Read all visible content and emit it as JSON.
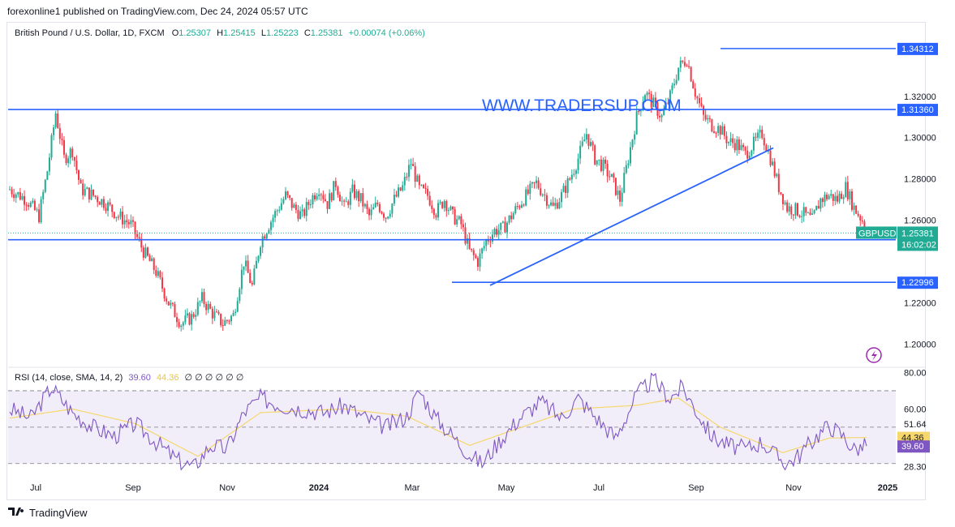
{
  "header": {
    "publisher_text": "forexonline1 published on TradingView.com, Dec 24, 2024 05:57 UTC"
  },
  "legend": {
    "symbol_desc": "British Pound / U.S. Dollar, 1D, FXCM",
    "open_label": "O",
    "open": "1.25307",
    "high_label": "H",
    "high": "1.25415",
    "low_label": "L",
    "low": "1.25223",
    "close_label": "C",
    "close": "1.25381",
    "change": "+0.00074 (+0.06%)"
  },
  "watermark": "WWW.TRADERSUP.COM",
  "rsi_legend": {
    "label": "RSI (14, close, SMA, 14, 2)",
    "rsi_value": "39.60",
    "sma_value": "44.36",
    "eye_icons": "∅ ∅ ∅ ∅ ∅ ∅"
  },
  "footer": {
    "brand": "TradingView"
  },
  "colors": {
    "up": "#22ab94",
    "down": "#f23645",
    "line": "#2962ff",
    "rsi": "#7e57c2",
    "rsi_sma": "#f5d76e",
    "rsi_band": "#ede7f6",
    "watermark": "#2962ff"
  },
  "chart_data": [
    {
      "type": "candlestick",
      "symbol": "GBPUSD",
      "x_labels": [
        "Jul",
        "Sep",
        "Nov",
        "2024",
        "Mar",
        "May",
        "Jul",
        "Sep",
        "Nov",
        "2025"
      ],
      "y_ticks": [
        "1.20000",
        "1.22000",
        "1.26000",
        "1.28000",
        "1.30000",
        "1.32000"
      ],
      "ylim": [
        1.19,
        1.347
      ],
      "approx_closes": [
        [
          0,
          1.275
        ],
        [
          8,
          1.27
        ],
        [
          14,
          1.262
        ],
        [
          18,
          1.284
        ],
        [
          22,
          1.312
        ],
        [
          26,
          1.29
        ],
        [
          30,
          1.294
        ],
        [
          34,
          1.275
        ],
        [
          40,
          1.272
        ],
        [
          46,
          1.268
        ],
        [
          52,
          1.262
        ],
        [
          58,
          1.258
        ],
        [
          64,
          1.245
        ],
        [
          70,
          1.235
        ],
        [
          76,
          1.22
        ],
        [
          82,
          1.21
        ],
        [
          87,
          1.213
        ],
        [
          92,
          1.222
        ],
        [
          97,
          1.215
        ],
        [
          102,
          1.21
        ],
        [
          107,
          1.214
        ],
        [
          112,
          1.24
        ],
        [
          116,
          1.228
        ],
        [
          120,
          1.25
        ],
        [
          124,
          1.258
        ],
        [
          128,
          1.265
        ],
        [
          132,
          1.272
        ],
        [
          136,
          1.266
        ],
        [
          140,
          1.262
        ],
        [
          144,
          1.27
        ],
        [
          148,
          1.276
        ],
        [
          152,
          1.268
        ],
        [
          156,
          1.278
        ],
        [
          160,
          1.266
        ],
        [
          164,
          1.274
        ],
        [
          168,
          1.27
        ],
        [
          172,
          1.262
        ],
        [
          176,
          1.268
        ],
        [
          180,
          1.262
        ],
        [
          184,
          1.27
        ],
        [
          188,
          1.276
        ],
        [
          192,
          1.288
        ],
        [
          196,
          1.275
        ],
        [
          200,
          1.272
        ],
        [
          204,
          1.264
        ],
        [
          208,
          1.27
        ],
        [
          212,
          1.262
        ],
        [
          216,
          1.258
        ],
        [
          220,
          1.245
        ],
        [
          224,
          1.24
        ],
        [
          228,
          1.25
        ],
        [
          232,
          1.255
        ],
        [
          236,
          1.256
        ],
        [
          240,
          1.262
        ],
        [
          244,
          1.268
        ],
        [
          248,
          1.273
        ],
        [
          252,
          1.278
        ],
        [
          256,
          1.272
        ],
        [
          260,
          1.266
        ],
        [
          264,
          1.272
        ],
        [
          268,
          1.28
        ],
        [
          272,
          1.29
        ],
        [
          276,
          1.302
        ],
        [
          280,
          1.29
        ],
        [
          284,
          1.286
        ],
        [
          288,
          1.28
        ],
        [
          292,
          1.27
        ],
        [
          296,
          1.29
        ],
        [
          300,
          1.31
        ],
        [
          304,
          1.322
        ],
        [
          308,
          1.316
        ],
        [
          312,
          1.31
        ],
        [
          316,
          1.32
        ],
        [
          320,
          1.334
        ],
        [
          324,
          1.338
        ],
        [
          328,
          1.322
        ],
        [
          332,
          1.31
        ],
        [
          336,
          1.306
        ],
        [
          340,
          1.304
        ],
        [
          344,
          1.298
        ],
        [
          348,
          1.297
        ],
        [
          352,
          1.292
        ],
        [
          356,
          1.297
        ],
        [
          360,
          1.302
        ],
        [
          364,
          1.29
        ],
        [
          368,
          1.276
        ],
        [
          372,
          1.266
        ],
        [
          376,
          1.265
        ],
        [
          380,
          1.263
        ],
        [
          384,
          1.26
        ],
        [
          388,
          1.27
        ],
        [
          392,
          1.272
        ],
        [
          396,
          1.27
        ],
        [
          400,
          1.276
        ],
        [
          404,
          1.266
        ],
        [
          408,
          1.26
        ],
        [
          410,
          1.25381
        ]
      ],
      "horizontal_levels": [
        "1.34312",
        "1.31360",
        "1.25055",
        "1.22996"
      ],
      "trendline": {
        "from": [
          1.2285,
          "late Apr 2024"
        ],
        "to": [
          1.295,
          "mid Oct 2024"
        ]
      },
      "last_price_label": "GBPUSD",
      "last_price": "1.25381",
      "countdown": "16:02:02"
    },
    {
      "type": "line",
      "name": "RSI (14, close, SMA, 14, 2)",
      "y_ticks": [
        "28.30",
        "60.00",
        "80.00"
      ],
      "ylim": [
        25,
        82
      ],
      "bands": [
        30,
        50,
        70
      ],
      "rsi_last": "39.60",
      "sma_last": "44.36",
      "extra_label": "51.64",
      "approx_rsi": [
        [
          0,
          60
        ],
        [
          10,
          55
        ],
        [
          20,
          72
        ],
        [
          30,
          58
        ],
        [
          40,
          50
        ],
        [
          50,
          45
        ],
        [
          60,
          52
        ],
        [
          70,
          42
        ],
        [
          80,
          32
        ],
        [
          88,
          28
        ],
        [
          96,
          40
        ],
        [
          104,
          38
        ],
        [
          112,
          58
        ],
        [
          120,
          66
        ],
        [
          130,
          62
        ],
        [
          140,
          60
        ],
        [
          150,
          58
        ],
        [
          160,
          62
        ],
        [
          170,
          55
        ],
        [
          180,
          50
        ],
        [
          190,
          56
        ],
        [
          196,
          70
        ],
        [
          204,
          55
        ],
        [
          212,
          45
        ],
        [
          220,
          35
        ],
        [
          226,
          30
        ],
        [
          234,
          42
        ],
        [
          244,
          55
        ],
        [
          254,
          64
        ],
        [
          264,
          55
        ],
        [
          272,
          66
        ],
        [
          280,
          56
        ],
        [
          290,
          44
        ],
        [
          300,
          68
        ],
        [
          308,
          76
        ],
        [
          316,
          66
        ],
        [
          322,
          72
        ],
        [
          328,
          60
        ],
        [
          336,
          45
        ],
        [
          344,
          40
        ],
        [
          352,
          38
        ],
        [
          360,
          42
        ],
        [
          366,
          35
        ],
        [
          372,
          30
        ],
        [
          378,
          35
        ],
        [
          386,
          45
        ],
        [
          392,
          51
        ],
        [
          398,
          46
        ],
        [
          404,
          38
        ],
        [
          410,
          39.6
        ]
      ],
      "approx_sma": [
        [
          0,
          55
        ],
        [
          30,
          60
        ],
        [
          60,
          52
        ],
        [
          90,
          34
        ],
        [
          120,
          58
        ],
        [
          160,
          60
        ],
        [
          190,
          56
        ],
        [
          220,
          40
        ],
        [
          240,
          48
        ],
        [
          270,
          60
        ],
        [
          300,
          62
        ],
        [
          320,
          66
        ],
        [
          340,
          50
        ],
        [
          370,
          36
        ],
        [
          392,
          44
        ],
        [
          410,
          44.36
        ]
      ]
    }
  ]
}
